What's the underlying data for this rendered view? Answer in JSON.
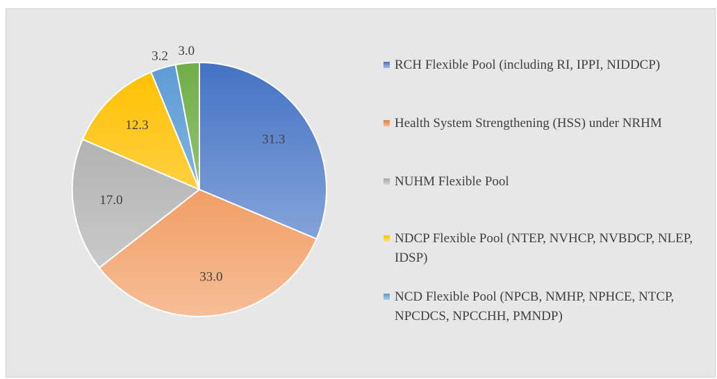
{
  "chart_data": {
    "type": "pie",
    "categories": [
      "RCH Flexible Pool (including RI, IPPI, NIDDCP)",
      "Health System Strengthening (HSS) under NRHM",
      "NUHM Flexible Pool",
      "NDCP Flexible Pool (NTEP, NVHCP, NVBDCP, NLEP, IDSP)",
      "NCD Flexible Pool (NPCB, NMHP, NPHCE, NTCP, NPCDCS, NPCCHH, PMNDP)",
      null
    ],
    "values": [
      31.3,
      33.0,
      17.0,
      12.3,
      3.2,
      3.0
    ],
    "value_labels": [
      "31.3",
      "33.0",
      "17.0",
      "12.3",
      "3.2",
      "3.0"
    ],
    "colors": [
      "#4472c4",
      "#ed7d31",
      "#a5a5a5",
      "#ffc000",
      "#5b9bd5",
      "#70ad47"
    ]
  }
}
